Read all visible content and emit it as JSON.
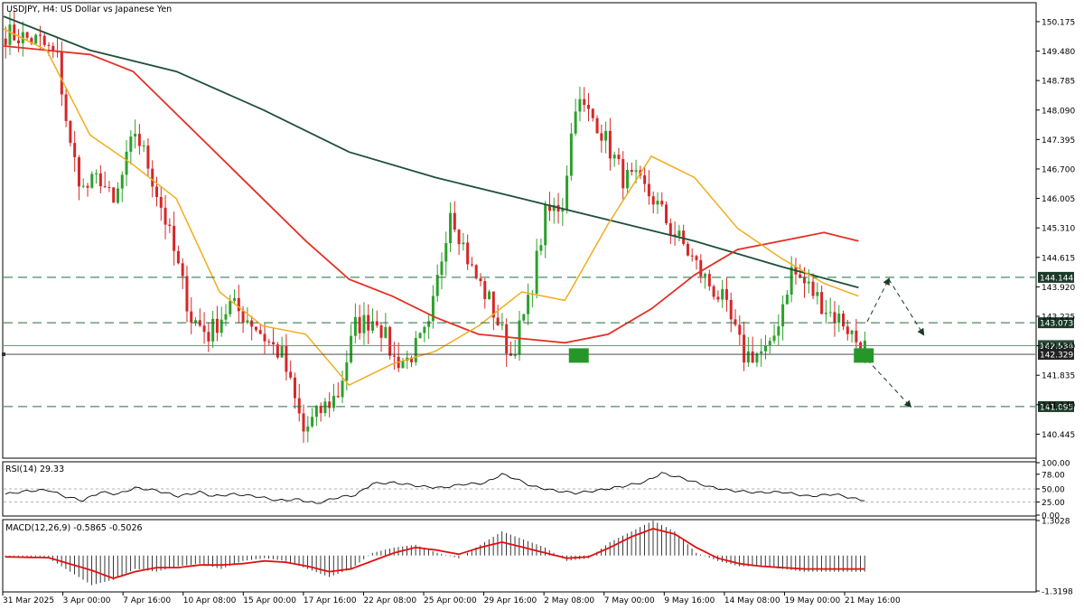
{
  "header": {
    "title": "USDJPY, H4:  US Dollar vs Japanese Yen"
  },
  "colors": {
    "bull": "#2ca02c",
    "bear": "#d62728",
    "ma_fast": "#f0ad1e",
    "ma_mid": "#e53025",
    "ma_slow": "#1f4f3a",
    "level": "#1f6f3f",
    "macd_signal": "#e01010",
    "marker": "#27962a"
  },
  "chart_data": [
    {
      "type": "candlestick",
      "title": "USDJPY, H4:  US Dollar vs Japanese Yen",
      "ylim": [
        139.9,
        150.6
      ],
      "y_ticks": [
        "150.175",
        "149.480",
        "148.785",
        "148.090",
        "147.395",
        "146.700",
        "146.005",
        "145.310",
        "144.615",
        "143.920",
        "143.225",
        "142.530",
        "141.835",
        "141.140",
        "140.445"
      ],
      "x_ticks": [
        "31 Mar 2025",
        "3 Apr 00:00",
        "7 Apr 16:00",
        "10 Apr 08:00",
        "15 Apr 00:00",
        "17 Apr 16:00",
        "22 Apr 08:00",
        "25 Apr 00:00",
        "29 Apr 16:00",
        "2 May 08:00",
        "7 May 00:00",
        "9 May 16:00",
        "14 May 08:00",
        "19 May 00:00",
        "21 May 16:00"
      ],
      "close_path_x": [
        0,
        8,
        12,
        15,
        18,
        22,
        25,
        30,
        33,
        37,
        43,
        47,
        52,
        57,
        61,
        64,
        69,
        73,
        77,
        81,
        86,
        90,
        93,
        98,
        103,
        108,
        112,
        117,
        121,
        125,
        129,
        132,
        137,
        143,
        146,
        150,
        154,
        157,
        162,
        166,
        171,
        177,
        182,
        186,
        191,
        194,
        198
      ],
      "close_path_y": [
        149.9,
        149.7,
        149.3,
        147.2,
        146.2,
        146.5,
        145.8,
        147.6,
        146.8,
        145.5,
        143.2,
        142.8,
        143.5,
        143.1,
        142.6,
        142.3,
        140.5,
        141.0,
        141.4,
        143.0,
        143.2,
        142.2,
        142.2,
        142.9,
        145.8,
        144.3,
        143.6,
        142.3,
        143.5,
        145.6,
        145.9,
        148.3,
        147.8,
        146.5,
        146.4,
        146.0,
        145.3,
        144.9,
        144.1,
        143.6,
        142.3,
        142.4,
        144.3,
        143.9,
        143.3,
        143.1,
        142.5
      ],
      "ma_fast": [
        [
          0,
          150.0
        ],
        [
          10,
          149.5
        ],
        [
          20,
          147.5
        ],
        [
          30,
          146.8
        ],
        [
          40,
          146.0
        ],
        [
          50,
          143.8
        ],
        [
          60,
          143.0
        ],
        [
          70,
          142.8
        ],
        [
          80,
          141.6
        ],
        [
          90,
          142.1
        ],
        [
          100,
          142.4
        ],
        [
          110,
          143.0
        ],
        [
          120,
          143.8
        ],
        [
          130,
          143.6
        ],
        [
          140,
          145.4
        ],
        [
          150,
          147.0
        ],
        [
          160,
          146.5
        ],
        [
          170,
          145.3
        ],
        [
          180,
          144.6
        ],
        [
          190,
          144.0
        ],
        [
          198,
          143.7
        ]
      ],
      "ma_mid": [
        [
          0,
          149.6
        ],
        [
          10,
          149.5
        ],
        [
          20,
          149.4
        ],
        [
          30,
          149.0
        ],
        [
          40,
          148.0
        ],
        [
          50,
          147.0
        ],
        [
          60,
          146.0
        ],
        [
          70,
          145.0
        ],
        [
          80,
          144.1
        ],
        [
          90,
          143.7
        ],
        [
          100,
          143.2
        ],
        [
          110,
          142.8
        ],
        [
          120,
          142.7
        ],
        [
          130,
          142.6
        ],
        [
          140,
          142.8
        ],
        [
          150,
          143.4
        ],
        [
          160,
          144.2
        ],
        [
          170,
          144.8
        ],
        [
          180,
          145.0
        ],
        [
          190,
          145.2
        ],
        [
          198,
          145.0
        ]
      ],
      "ma_slow": [
        [
          0,
          150.3
        ],
        [
          20,
          149.5
        ],
        [
          40,
          149.0
        ],
        [
          60,
          148.1
        ],
        [
          80,
          147.1
        ],
        [
          100,
          146.5
        ],
        [
          120,
          146.0
        ],
        [
          140,
          145.5
        ],
        [
          160,
          145.0
        ],
        [
          180,
          144.4
        ],
        [
          198,
          143.9
        ]
      ],
      "levels": [
        {
          "value": "144.144",
          "y": 144.144
        },
        {
          "value": "143.073",
          "y": 143.073
        },
        {
          "value": "141.095",
          "y": 141.095
        }
      ],
      "price_labels": [
        {
          "value": "142.534",
          "y": 142.534
        },
        {
          "value": "142.329",
          "y": 142.329
        }
      ],
      "projection_arrows": [
        {
          "x1": 200,
          "y1": 143.1,
          "x2": 205,
          "y2": 144.1
        },
        {
          "x1": 205,
          "y1": 144.1,
          "x2": 213,
          "y2": 142.8
        },
        {
          "x1": 200,
          "y1": 142.2,
          "x2": 210,
          "y2": 141.1
        }
      ],
      "markers": [
        {
          "x": 133,
          "y": 142.3
        },
        {
          "x": 199,
          "y": 142.3
        }
      ]
    },
    {
      "type": "line",
      "title": "RSI(14) 29.33",
      "ylim": [
        0,
        100
      ],
      "y_ticks": [
        "100.00",
        "78.00",
        "50.00",
        "25.00",
        "0.00"
      ],
      "levels": [
        50,
        25
      ],
      "x": [
        0,
        5,
        10,
        14,
        18,
        22,
        26,
        30,
        35,
        40,
        45,
        48,
        53,
        58,
        63,
        68,
        72,
        77,
        81,
        85,
        90,
        96,
        101,
        106,
        111,
        115,
        118,
        122,
        127,
        132,
        137,
        143,
        148,
        152,
        157,
        163,
        168,
        174,
        180,
        186,
        192,
        198
      ],
      "values": [
        40,
        46,
        48,
        35,
        28,
        44,
        40,
        52,
        47,
        36,
        44,
        36,
        40,
        36,
        28,
        30,
        22,
        34,
        38,
        60,
        62,
        55,
        52,
        59,
        61,
        78,
        70,
        55,
        47,
        42,
        47,
        55,
        63,
        80,
        70,
        54,
        47,
        43,
        44,
        36,
        40,
        29
      ]
    },
    {
      "type": "bar",
      "title": "MACD(12,26,9) -0.5865 -0.5026",
      "ylim": [
        -1.3198,
        1.3028
      ],
      "y_ticks": [
        "1.3028",
        "-1.3198"
      ],
      "histogram_x": [
        0,
        10,
        15,
        20,
        25,
        30,
        35,
        40,
        45,
        50,
        55,
        60,
        65,
        70,
        75,
        80,
        85,
        90,
        95,
        100,
        105,
        110,
        115,
        120,
        125,
        130,
        135,
        140,
        145,
        150,
        155,
        160,
        165,
        170,
        175,
        180,
        185,
        190,
        198
      ],
      "histogram": [
        -0.05,
        -0.1,
        -0.6,
        -1.1,
        -0.9,
        -0.5,
        -0.6,
        -0.4,
        -0.3,
        -0.5,
        -0.2,
        -0.1,
        -0.2,
        -0.5,
        -0.8,
        -0.5,
        0.1,
        0.3,
        0.4,
        0.1,
        -0.1,
        0.4,
        0.9,
        0.6,
        0.3,
        -0.2,
        -0.1,
        0.5,
        0.9,
        1.3,
        0.9,
        0.1,
        -0.2,
        -0.4,
        -0.4,
        -0.5,
        -0.6,
        -0.6,
        -0.6
      ],
      "signal_x": [
        0,
        10,
        20,
        25,
        30,
        35,
        40,
        45,
        50,
        55,
        60,
        65,
        70,
        75,
        80,
        85,
        90,
        95,
        100,
        105,
        110,
        115,
        120,
        125,
        130,
        135,
        140,
        145,
        150,
        155,
        160,
        165,
        170,
        175,
        180,
        185,
        190,
        198
      ],
      "signal": [
        -0.05,
        -0.08,
        -0.55,
        -0.85,
        -0.6,
        -0.45,
        -0.45,
        -0.35,
        -0.35,
        -0.3,
        -0.2,
        -0.25,
        -0.4,
        -0.6,
        -0.5,
        -0.2,
        0.1,
        0.3,
        0.2,
        0.05,
        0.3,
        0.5,
        0.3,
        0.1,
        -0.1,
        -0.05,
        0.3,
        0.7,
        1.0,
        0.8,
        0.3,
        -0.1,
        -0.3,
        -0.4,
        -0.45,
        -0.5,
        -0.5,
        -0.5
      ]
    }
  ]
}
